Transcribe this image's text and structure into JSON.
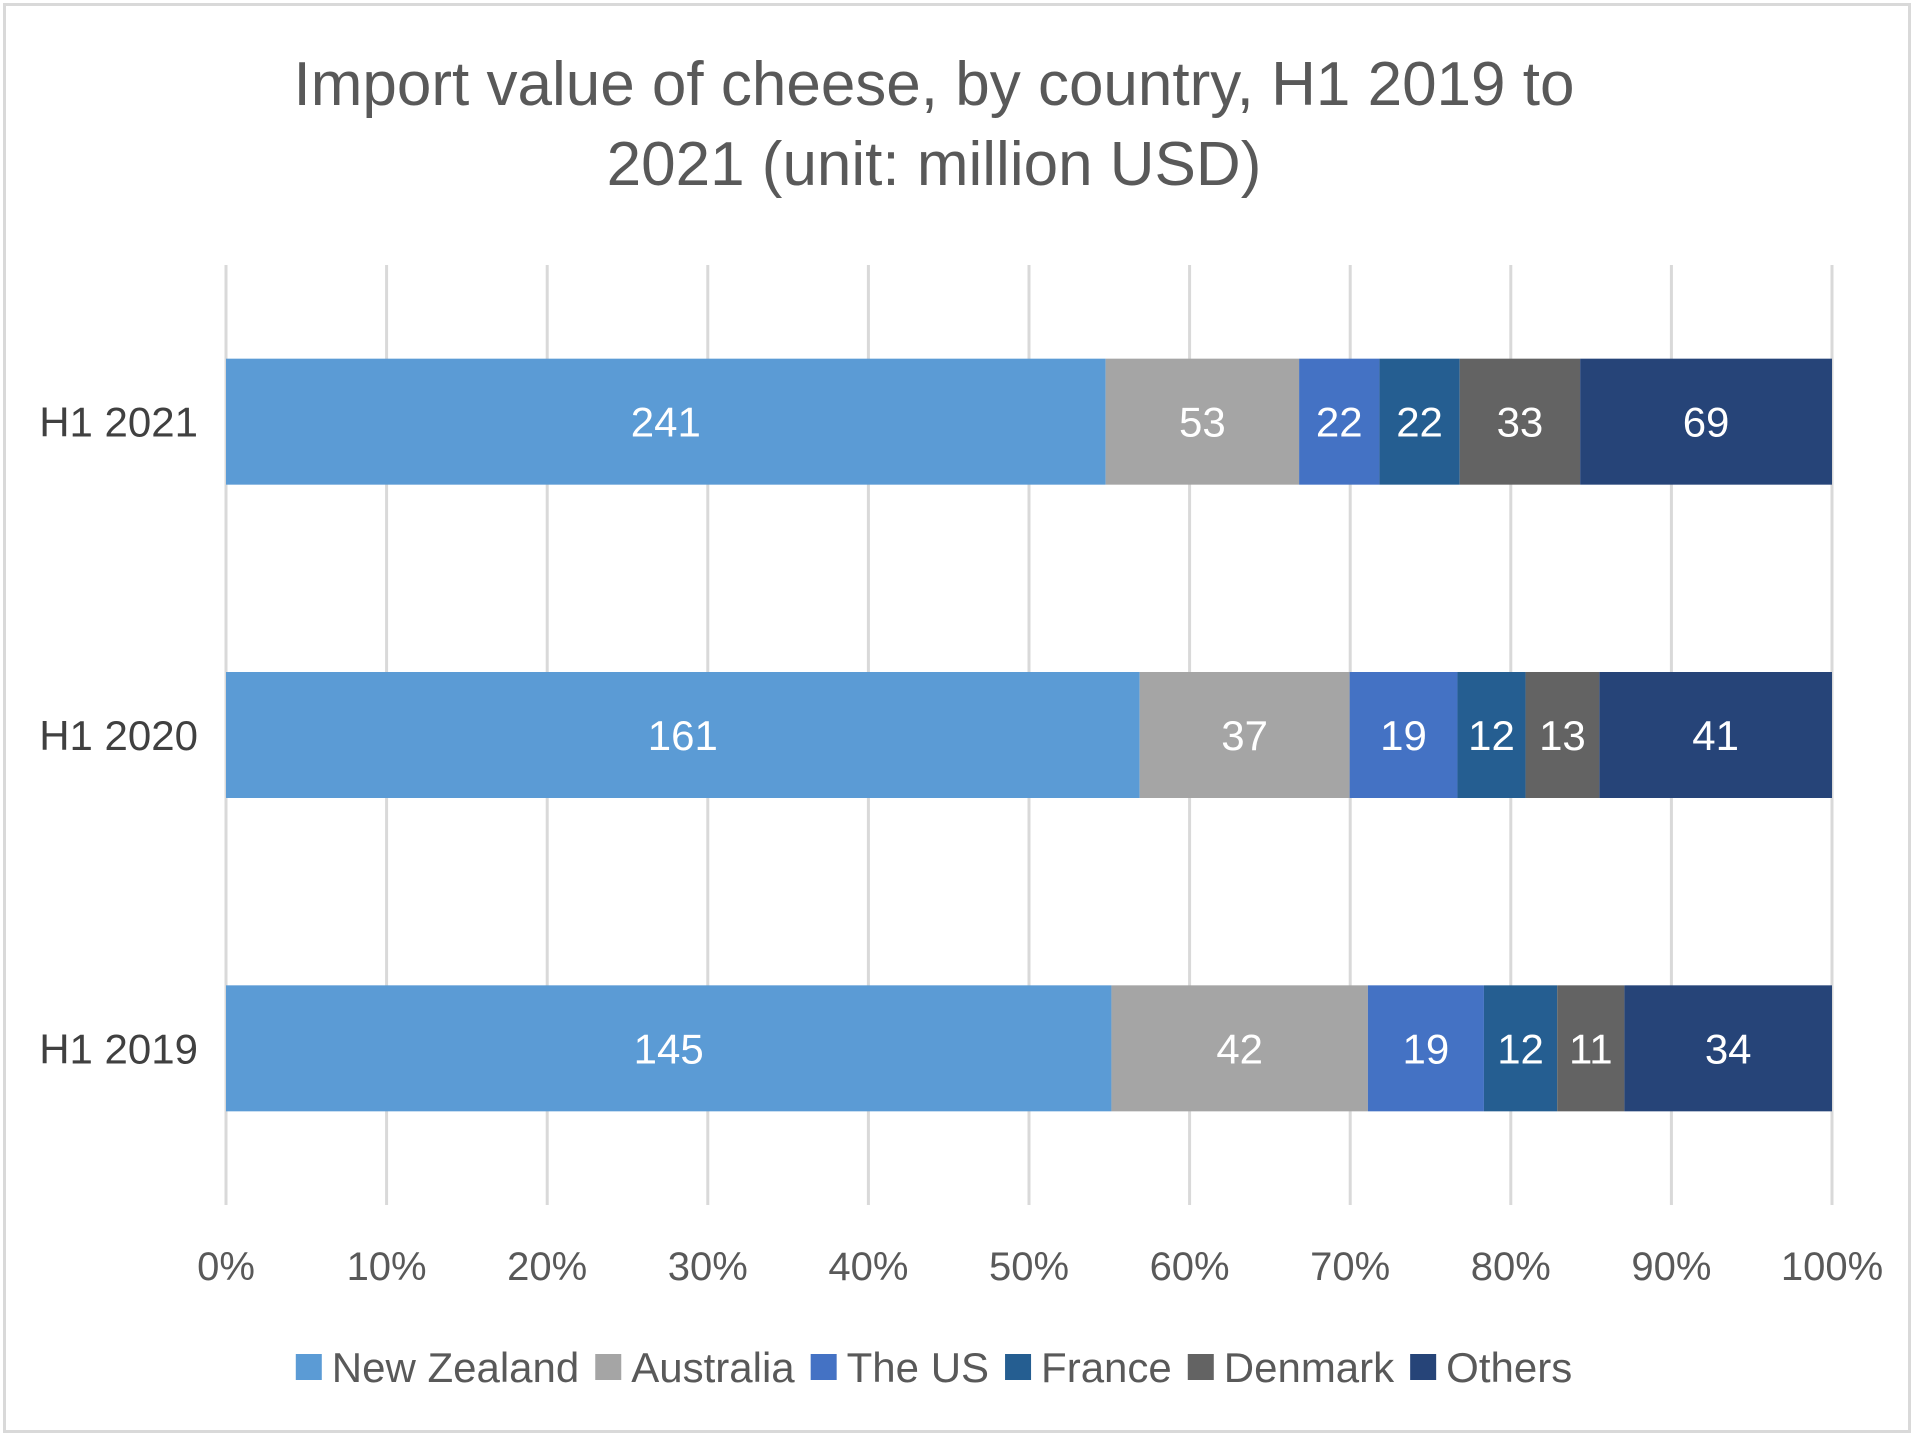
{
  "chart_data": {
    "type": "bar",
    "orientation": "horizontal",
    "stacked": "percent",
    "title": "Import value of cheese, by country, H1 2019 to 2021 (unit: million USD)",
    "title_lines": [
      "Import value of cheese, by country, H1 2019 to",
      "2021 (unit: million USD)"
    ],
    "categories": [
      "H1 2021",
      "H1 2020",
      "H1 2019"
    ],
    "series": [
      {
        "name": "New Zealand",
        "values": [
          241,
          161,
          145
        ],
        "color": "#5b9bd5"
      },
      {
        "name": "Australia",
        "values": [
          53,
          37,
          42
        ],
        "color": "#a5a5a5"
      },
      {
        "name": "The US",
        "values": [
          22,
          19,
          19
        ],
        "color": "#4472c4"
      },
      {
        "name": "France",
        "values": [
          22,
          12,
          12
        ],
        "color": "#255e91"
      },
      {
        "name": "Denmark",
        "values": [
          33,
          13,
          11
        ],
        "color": "#636363"
      },
      {
        "name": "Others",
        "values": [
          69,
          41,
          34
        ],
        "color": "#264478"
      }
    ],
    "x_ticks": [
      "0%",
      "10%",
      "20%",
      "30%",
      "40%",
      "50%",
      "60%",
      "70%",
      "80%",
      "90%",
      "100%"
    ],
    "xlim": [
      0,
      100
    ],
    "grid": "vertical",
    "legend": "bottom",
    "data_labels": true
  }
}
